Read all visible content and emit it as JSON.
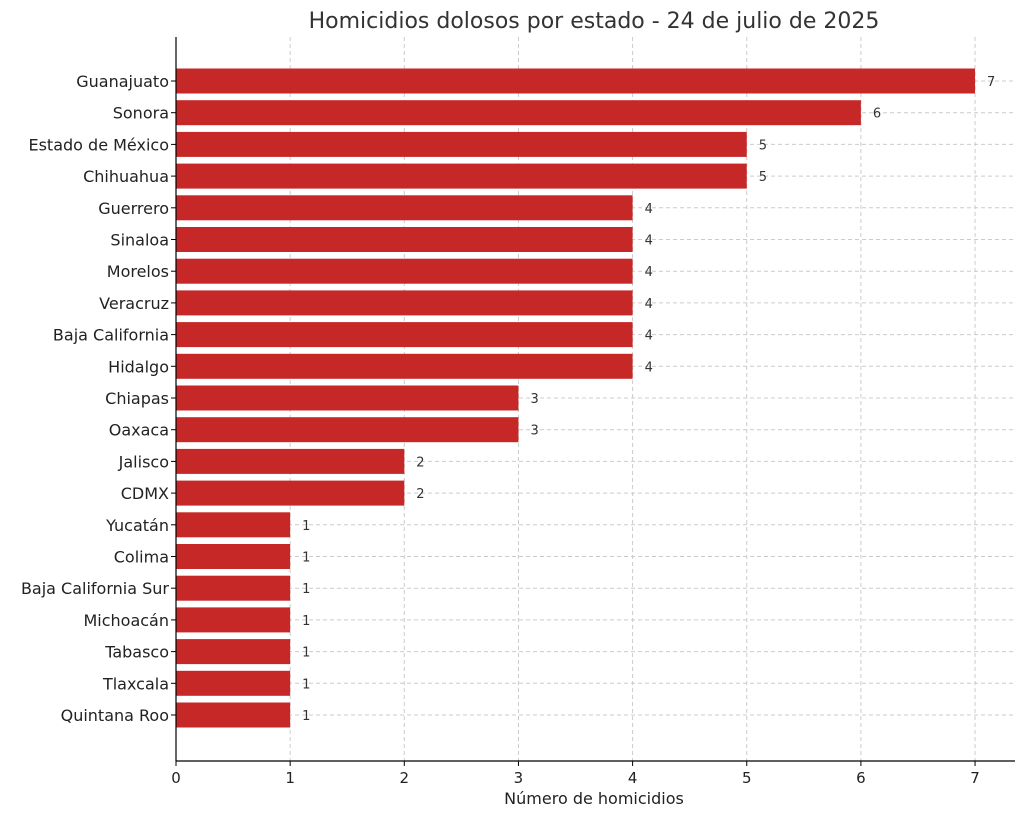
{
  "chart_data": {
    "type": "bar",
    "orientation": "horizontal",
    "title": "Homicidios dolosos por estado - 24 de julio de 2025",
    "xlabel": "Número de homicidios",
    "ylabel": "",
    "xlim": [
      0,
      7.35
    ],
    "xticks": [
      0,
      1,
      2,
      3,
      4,
      5,
      6,
      7
    ],
    "grid": true,
    "bar_color": "#c62828",
    "categories": [
      "Guanajuato",
      "Sonora",
      "Estado de México",
      "Chihuahua",
      "Guerrero",
      "Sinaloa",
      "Morelos",
      "Veracruz",
      "Baja California",
      "Hidalgo",
      "Chiapas",
      "Oaxaca",
      "Jalisco",
      "CDMX",
      "Yucatán",
      "Colima",
      "Baja California Sur",
      "Michoacán",
      "Tabasco",
      "Tlaxcala",
      "Quintana Roo"
    ],
    "values": [
      7,
      6,
      5,
      5,
      4,
      4,
      4,
      4,
      4,
      4,
      3,
      3,
      2,
      2,
      1,
      1,
      1,
      1,
      1,
      1,
      1
    ]
  }
}
